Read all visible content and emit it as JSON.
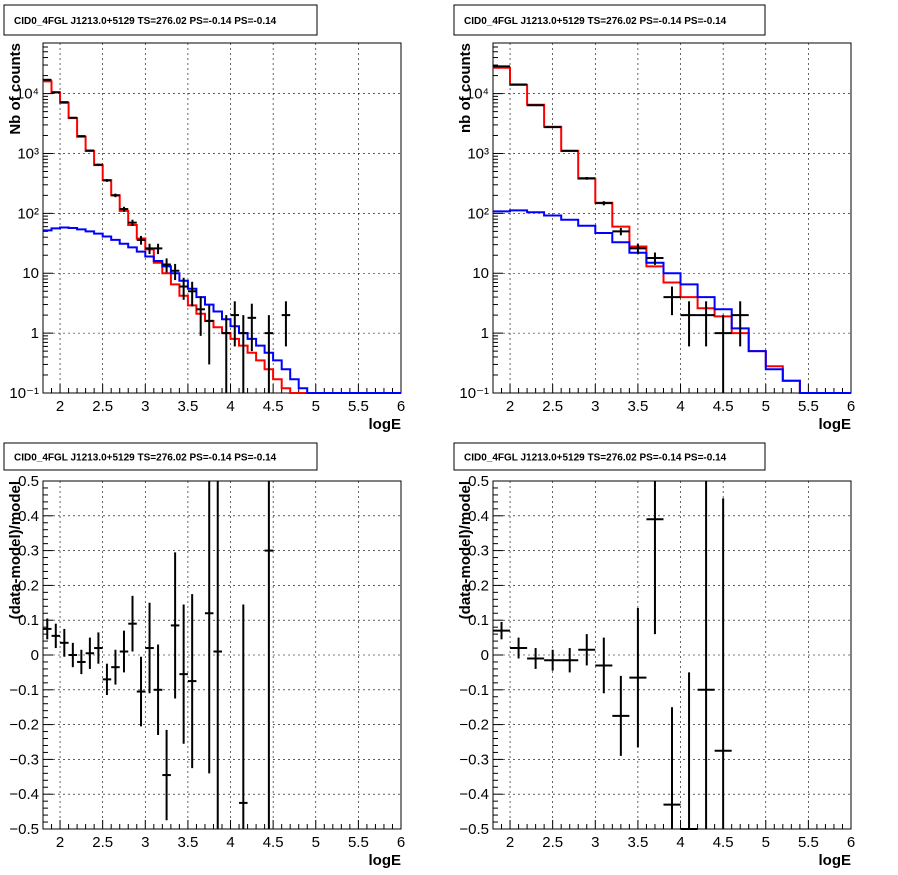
{
  "chart_data": [
    {
      "type": "histogram",
      "title": "CID0_4FGL J1213.0+5129 TS=276.02 PS=-0.14 PS=-0.14",
      "xlabel": "logE",
      "ylabel": "Nb of counts",
      "xlim": [
        1.8,
        6.0
      ],
      "ylim": [
        0.1,
        70000
      ],
      "yscale": "log",
      "grid": true,
      "xticks": [
        2,
        2.5,
        3,
        3.5,
        4,
        4.5,
        5,
        5.5,
        6
      ],
      "xtick_labels": [
        "2",
        "2.5",
        "3",
        "3.5",
        "4",
        "4.5",
        "5",
        "5.5",
        "6"
      ],
      "yticks": [
        0.1,
        1,
        10,
        100,
        1000,
        10000
      ],
      "ytick_labels": [
        "10⁻¹",
        "1",
        "10",
        "10²",
        "10³",
        "10⁴"
      ],
      "bin_width": 0.1,
      "bin_start": 1.8,
      "series": [
        {
          "color": "#ff0000",
          "style": "step",
          "values": [
            16000,
            10500,
            7000,
            3900,
            1900,
            1100,
            640,
            360,
            200,
            110,
            64,
            38,
            25,
            15,
            10,
            6.5,
            4.2,
            2.9,
            2.1,
            1.6,
            1.25,
            1.0,
            0.8,
            0.62,
            0.47,
            0.35,
            0.25,
            0.17,
            0.12,
            0.1,
            0.1,
            0.1,
            0.1,
            0.1,
            0.1,
            0.1,
            0.1,
            0.1,
            0.1,
            0.1,
            0.1,
            0.1
          ]
        },
        {
          "color": "#0000ff",
          "style": "step",
          "values": [
            52,
            56,
            58,
            57,
            54,
            50,
            46,
            41,
            36,
            31,
            27,
            23,
            19,
            16,
            13,
            10,
            7.5,
            5.5,
            4.0,
            3.0,
            2.3,
            1.7,
            1.3,
            1.0,
            0.8,
            0.62,
            0.47,
            0.35,
            0.25,
            0.17,
            0.12,
            0.1,
            0.1,
            0.1,
            0.1,
            0.1,
            0.1,
            0.1,
            0.1,
            0.1,
            0.1,
            0.1
          ]
        }
      ],
      "points": [
        {
          "x": 1.85,
          "y": 17000,
          "err": 130
        },
        {
          "x": 1.95,
          "y": 10500,
          "err": 100
        },
        {
          "x": 2.05,
          "y": 7200,
          "err": 85
        },
        {
          "x": 2.15,
          "y": 3950,
          "err": 63
        },
        {
          "x": 2.25,
          "y": 1950,
          "err": 44
        },
        {
          "x": 2.35,
          "y": 1120,
          "err": 33
        },
        {
          "x": 2.45,
          "y": 650,
          "err": 25
        },
        {
          "x": 2.55,
          "y": 355,
          "err": 19
        },
        {
          "x": 2.65,
          "y": 200,
          "err": 14
        },
        {
          "x": 2.75,
          "y": 118,
          "err": 11
        },
        {
          "x": 2.85,
          "y": 70,
          "err": 8.4
        },
        {
          "x": 2.95,
          "y": 36,
          "err": 6
        },
        {
          "x": 3.05,
          "y": 26,
          "err": 5.1
        },
        {
          "x": 3.15,
          "y": 26,
          "err": 5.1
        },
        {
          "x": 3.25,
          "y": 14,
          "err": 3.7
        },
        {
          "x": 3.35,
          "y": 11,
          "err": 3.3
        },
        {
          "x": 3.45,
          "y": 6,
          "err": 2.4
        },
        {
          "x": 3.55,
          "y": 5,
          "err": 2.2
        },
        {
          "x": 3.65,
          "y": 2.5,
          "err": 1.6
        },
        {
          "x": 3.75,
          "y": 1.6,
          "err": 1.3
        },
        {
          "x": 3.95,
          "y": 1,
          "err": 1
        },
        {
          "x": 4.05,
          "y": 2,
          "err": 1.4
        },
        {
          "x": 4.15,
          "y": 1,
          "err": 1
        },
        {
          "x": 4.25,
          "y": 1.8,
          "err": 1.3
        },
        {
          "x": 4.45,
          "y": 1,
          "err": 1
        },
        {
          "x": 4.65,
          "y": 2,
          "err": 1.4
        }
      ]
    },
    {
      "type": "histogram",
      "title": "CID0_4FGL J1213.0+5129 TS=276.02 PS=-0.14 PS=-0.14",
      "xlabel": "logE",
      "ylabel": "nb of counts",
      "xlim": [
        1.8,
        6.0
      ],
      "ylim": [
        0.1,
        70000
      ],
      "yscale": "log",
      "grid": true,
      "xticks": [
        2,
        2.5,
        3,
        3.5,
        4,
        4.5,
        5,
        5.5,
        6
      ],
      "xtick_labels": [
        "2",
        "2.5",
        "3",
        "3.5",
        "4",
        "4.5",
        "5",
        "5.5",
        "6"
      ],
      "yticks": [
        0.1,
        1,
        10,
        100,
        1000,
        10000
      ],
      "ytick_labels": [
        "10⁻¹",
        "1",
        "10",
        "10²",
        "10³",
        "10⁴"
      ],
      "bin_width": 0.2,
      "bin_start": 1.8,
      "series": [
        {
          "color": "#ff0000",
          "style": "step",
          "values": [
            27000,
            14000,
            6500,
            2800,
            1100,
            380,
            150,
            60,
            28,
            13,
            7,
            4,
            2.6,
            1.9,
            1.0,
            0.5,
            0.28,
            0.16,
            0.1,
            0.1,
            0.1
          ]
        },
        {
          "color": "#0000ff",
          "style": "step",
          "values": [
            108,
            112,
            104,
            92,
            78,
            62,
            47,
            33,
            22,
            15,
            10,
            6.5,
            4.0,
            2.5,
            1.2,
            0.5,
            0.25,
            0.16,
            0.1,
            0.1,
            0.1
          ]
        }
      ],
      "points": [
        {
          "x": 1.9,
          "y": 28500,
          "err": 170
        },
        {
          "x": 2.1,
          "y": 14200,
          "err": 120
        },
        {
          "x": 2.3,
          "y": 6400,
          "err": 80
        },
        {
          "x": 2.5,
          "y": 2750,
          "err": 52
        },
        {
          "x": 2.7,
          "y": 1110,
          "err": 33
        },
        {
          "x": 2.9,
          "y": 385,
          "err": 20
        },
        {
          "x": 3.1,
          "y": 148,
          "err": 12
        },
        {
          "x": 3.3,
          "y": 50,
          "err": 7
        },
        {
          "x": 3.5,
          "y": 26,
          "err": 5.1
        },
        {
          "x": 3.7,
          "y": 18,
          "err": 4.2
        },
        {
          "x": 3.9,
          "y": 4,
          "err": 2
        },
        {
          "x": 4.1,
          "y": 2,
          "err": 1.4
        },
        {
          "x": 4.3,
          "y": 2,
          "err": 1.4
        },
        {
          "x": 4.5,
          "y": 1,
          "err": 1
        },
        {
          "x": 4.7,
          "y": 2,
          "err": 1.4
        }
      ]
    },
    {
      "type": "scatter",
      "title": "CID0_4FGL J1213.0+5129 TS=276.02 PS=-0.14 PS=-0.14",
      "xlabel": "logE",
      "ylabel": "(data-model)/model",
      "xlim": [
        1.8,
        6.0
      ],
      "ylim": [
        -0.5,
        0.5
      ],
      "grid": true,
      "xticks": [
        2,
        2.5,
        3,
        3.5,
        4,
        4.5,
        5,
        5.5,
        6
      ],
      "xtick_labels": [
        "2",
        "2.5",
        "3",
        "3.5",
        "4",
        "4.5",
        "5",
        "5.5",
        "6"
      ],
      "yticks": [
        -0.5,
        -0.4,
        -0.3,
        -0.2,
        -0.1,
        0,
        0.1,
        0.2,
        0.3,
        0.4,
        0.5
      ],
      "ytick_labels": [
        "−0.5",
        "−0.4",
        "−0.3",
        "−0.2",
        "−0.1",
        "0",
        "0.1",
        "0.2",
        "0.3",
        "0.4",
        "0.5"
      ],
      "xerr": 0.05,
      "points": [
        {
          "x": 1.85,
          "y": 0.075,
          "err": 0.03
        },
        {
          "x": 1.95,
          "y": 0.055,
          "err": 0.035
        },
        {
          "x": 2.05,
          "y": 0.035,
          "err": 0.04
        },
        {
          "x": 2.15,
          "y": 0.0,
          "err": 0.035
        },
        {
          "x": 2.25,
          "y": -0.02,
          "err": 0.035
        },
        {
          "x": 2.35,
          "y": 0.005,
          "err": 0.045
        },
        {
          "x": 2.45,
          "y": 0.02,
          "err": 0.045
        },
        {
          "x": 2.55,
          "y": -0.07,
          "err": 0.045
        },
        {
          "x": 2.65,
          "y": -0.035,
          "err": 0.05
        },
        {
          "x": 2.75,
          "y": 0.01,
          "err": 0.06
        },
        {
          "x": 2.85,
          "y": 0.09,
          "err": 0.08
        },
        {
          "x": 2.95,
          "y": -0.105,
          "err": 0.1
        },
        {
          "x": 3.05,
          "y": 0.02,
          "err": 0.13
        },
        {
          "x": 3.15,
          "y": -0.1,
          "err": 0.13
        },
        {
          "x": 3.25,
          "y": -0.345,
          "err": 0.13
        },
        {
          "x": 3.35,
          "y": 0.085,
          "err": 0.21
        },
        {
          "x": 3.45,
          "y": -0.055,
          "err": 0.2
        },
        {
          "x": 3.55,
          "y": -0.075,
          "err": 0.25
        },
        {
          "x": 3.75,
          "y": 0.12,
          "err": 0.46
        },
        {
          "x": 3.85,
          "y": 0.01,
          "err": 0.6
        },
        {
          "x": 4.15,
          "y": -0.425,
          "err": 0.57
        },
        {
          "x": 4.45,
          "y": 0.3,
          "err": 0.9
        }
      ]
    },
    {
      "type": "scatter",
      "title": "CID0_4FGL J1213.0+5129 TS=276.02 PS=-0.14 PS=-0.14",
      "xlabel": "logE",
      "ylabel": "(data-model)/model",
      "xlim": [
        1.8,
        6.0
      ],
      "ylim": [
        -0.5,
        0.5
      ],
      "grid": true,
      "xticks": [
        2,
        2.5,
        3,
        3.5,
        4,
        4.5,
        5,
        5.5,
        6
      ],
      "xtick_labels": [
        "2",
        "2.5",
        "3",
        "3.5",
        "4",
        "4.5",
        "5",
        "5.5",
        "6"
      ],
      "yticks": [
        -0.5,
        -0.4,
        -0.3,
        -0.2,
        -0.1,
        0,
        0.1,
        0.2,
        0.3,
        0.4,
        0.5
      ],
      "ytick_labels": [
        "−0.5",
        "−0.4",
        "−0.3",
        "−0.2",
        "−0.1",
        "0",
        "0.1",
        "0.2",
        "0.3",
        "0.4",
        "0.5"
      ],
      "xerr": 0.1,
      "points": [
        {
          "x": 1.9,
          "y": 0.07,
          "err": 0.025
        },
        {
          "x": 2.1,
          "y": 0.02,
          "err": 0.03
        },
        {
          "x": 2.3,
          "y": -0.01,
          "err": 0.03
        },
        {
          "x": 2.5,
          "y": -0.015,
          "err": 0.03
        },
        {
          "x": 2.7,
          "y": -0.015,
          "err": 0.035
        },
        {
          "x": 2.9,
          "y": 0.015,
          "err": 0.045
        },
        {
          "x": 3.1,
          "y": -0.03,
          "err": 0.08
        },
        {
          "x": 3.3,
          "y": -0.175,
          "err": 0.115
        },
        {
          "x": 3.5,
          "y": -0.065,
          "err": 0.2
        },
        {
          "x": 3.7,
          "y": 0.39,
          "err": 0.33
        },
        {
          "x": 3.9,
          "y": -0.43,
          "err": 0.28
        },
        {
          "x": 4.1,
          "y": -0.5,
          "err": 0.45
        },
        {
          "x": 4.3,
          "y": -0.1,
          "err": 0.72
        },
        {
          "x": 4.5,
          "y": -0.275,
          "err": 0.725
        }
      ]
    }
  ]
}
